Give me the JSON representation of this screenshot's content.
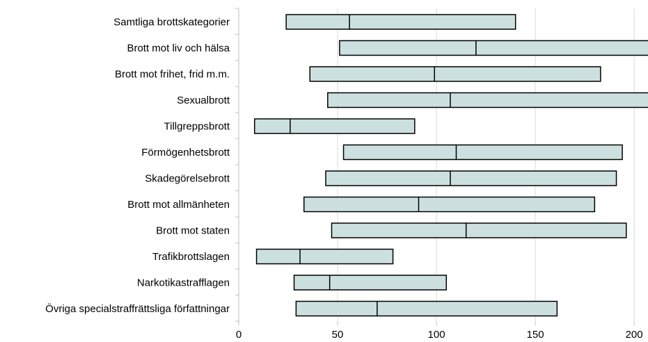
{
  "chart_data": {
    "type": "bar",
    "orientation": "horizontal",
    "style": "range-boxes-with-median",
    "categories": [
      "Samtliga brottskategorier",
      "Brott mot liv och hälsa",
      "Brott mot frihet, frid m.m.",
      "Sexualbrott",
      "Tillgreppsbrott",
      "Förmögenhetsbrott",
      "Skadegörelsebrott",
      "Brott mot allmänheten",
      "Brott mot staten",
      "Trafikbrottslagen",
      "Narkotikastrafflagen",
      "Övriga specialstraffrättsliga författningar"
    ],
    "series": [
      {
        "values": [
          {
            "low": 24,
            "median": 56,
            "high": 140
          },
          {
            "low": 51,
            "median": 120,
            "high": 215
          },
          {
            "low": 36,
            "median": 99,
            "high": 183
          },
          {
            "low": 45,
            "median": 107,
            "high": 215
          },
          {
            "low": 8,
            "median": 26,
            "high": 89
          },
          {
            "low": 53,
            "median": 110,
            "high": 194
          },
          {
            "low": 44,
            "median": 107,
            "high": 191
          },
          {
            "low": 33,
            "median": 91,
            "high": 180
          },
          {
            "low": 47,
            "median": 115,
            "high": 196
          },
          {
            "low": 9,
            "median": 31,
            "high": 78
          },
          {
            "low": 28,
            "median": 46,
            "high": 105
          },
          {
            "low": 29,
            "median": 70,
            "high": 161
          }
        ]
      }
    ],
    "x_ticks": [
      0,
      50,
      100,
      150,
      200
    ],
    "xlim": [
      0,
      207
    ],
    "title": "",
    "xlabel": "",
    "ylabel": "",
    "grid": "vertical",
    "legend": "none",
    "colors": {
      "box_fill": "#cde0e0",
      "box_stroke": "#000000",
      "grid": "#d9d9d9"
    }
  }
}
